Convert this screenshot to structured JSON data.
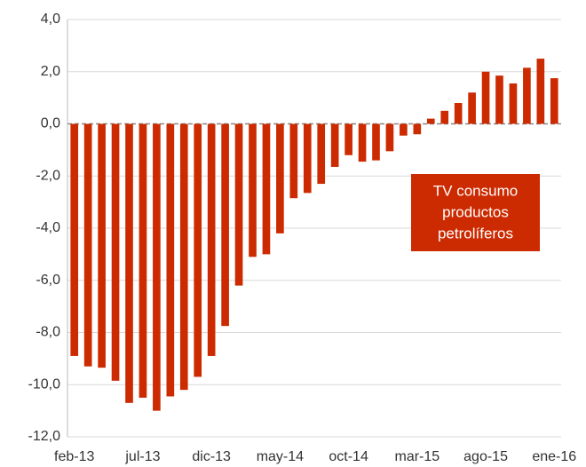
{
  "chart_data": {
    "type": "bar",
    "categories": [
      "feb-13",
      null,
      null,
      null,
      null,
      "jul-13",
      null,
      null,
      null,
      null,
      "dic-13",
      null,
      null,
      null,
      null,
      "may-14",
      null,
      null,
      null,
      null,
      "oct-14",
      null,
      null,
      null,
      null,
      "mar-15",
      null,
      null,
      null,
      null,
      "ago-15",
      null,
      null,
      null,
      null,
      "ene-16"
    ],
    "values": [
      -8.9,
      -9.3,
      -9.35,
      -9.85,
      -10.7,
      -10.5,
      -11.0,
      -10.45,
      -10.2,
      -9.7,
      -8.9,
      -7.75,
      -6.2,
      -5.1,
      -5.0,
      -4.2,
      -2.85,
      -2.65,
      -2.3,
      -1.65,
      -1.2,
      -1.45,
      -1.4,
      -1.05,
      -0.45,
      -0.4,
      0.2,
      0.5,
      0.8,
      1.2,
      2.0,
      1.85,
      1.55,
      2.15,
      2.5,
      1.75
    ],
    "color": "#cc2a00",
    "ylim": [
      -12,
      4
    ],
    "yticks": [
      {
        "value": -12,
        "label": "-12,0"
      },
      {
        "value": -10,
        "label": "-10,0"
      },
      {
        "value": -8,
        "label": "-8,0"
      },
      {
        "value": -6,
        "label": "-6,0"
      },
      {
        "value": -4,
        "label": "-4,0"
      },
      {
        "value": -2,
        "label": "-2,0"
      },
      {
        "value": 0,
        "label": "0,0"
      },
      {
        "value": 2,
        "label": "2,0"
      },
      {
        "value": 4,
        "label": "4,0"
      }
    ],
    "grid": true,
    "annotation": [
      "TV consumo",
      "productos",
      "petrolíferos"
    ]
  }
}
